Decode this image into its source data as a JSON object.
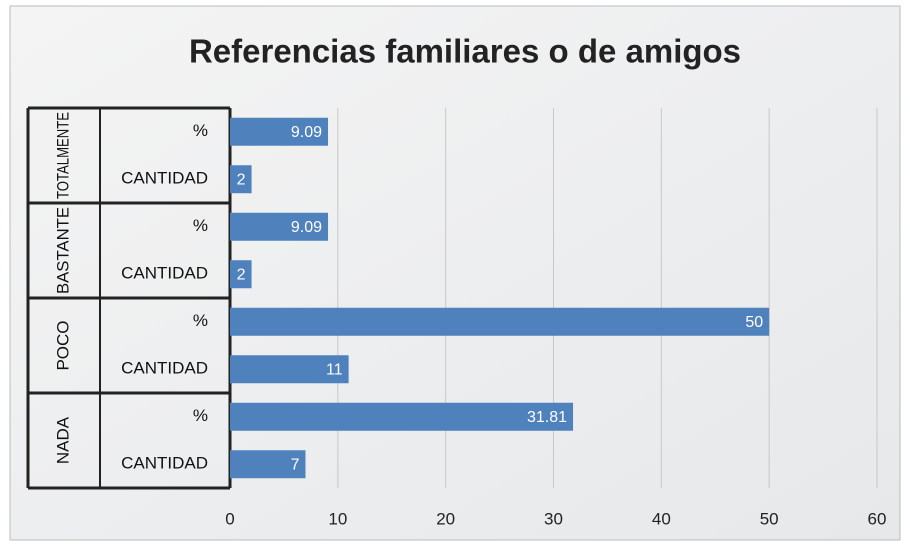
{
  "chart_data": {
    "type": "bar",
    "orientation": "horizontal",
    "title": "Referencias familiares o de amigos",
    "groups": [
      "TOTALMENTE",
      "BASTANTE",
      "POCO",
      "NADA"
    ],
    "categories": [
      "%",
      "CANTIDAD",
      "%",
      "CANTIDAD",
      "%",
      "CANTIDAD",
      "%",
      "CANTIDAD"
    ],
    "values": [
      9.09,
      2,
      9.09,
      2,
      50,
      11,
      31.81,
      7
    ],
    "color": "#4f81bd",
    "xlim": [
      0,
      60
    ],
    "xticks": [
      0,
      10,
      20,
      30,
      40,
      50,
      60
    ],
    "grid": true
  }
}
